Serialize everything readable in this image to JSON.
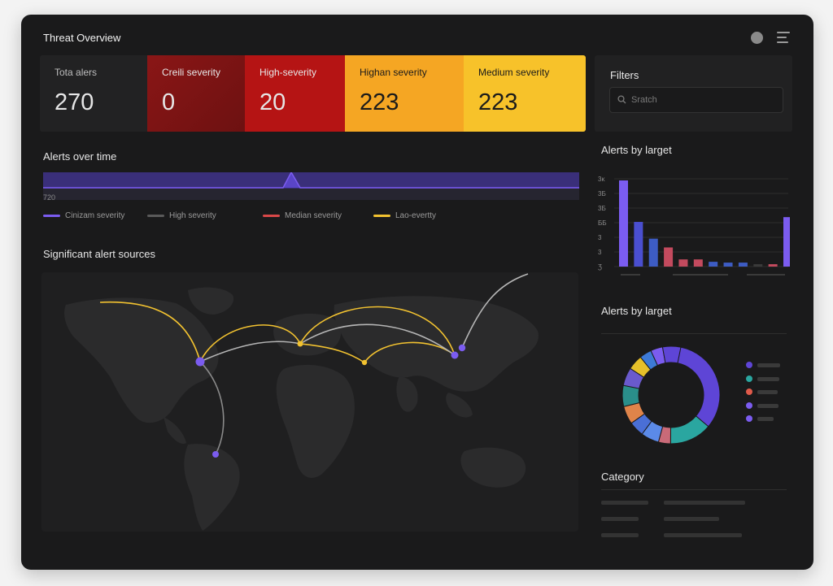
{
  "header": {
    "title": "Threat Overview",
    "icons": [
      "status-circle-icon",
      "menu-icon"
    ]
  },
  "stats": [
    {
      "key": "total",
      "label": "Tota alers",
      "value": "270"
    },
    {
      "key": "critical",
      "label": "Creili severity",
      "value": "0",
      "color": "#7d1414"
    },
    {
      "key": "high",
      "label": "High-severity",
      "value": "20",
      "color": "#b51414"
    },
    {
      "key": "highan",
      "label": "Highan severity",
      "value": "223",
      "color": "#f5a623"
    },
    {
      "key": "medium",
      "label": "Medium severity",
      "value": "223",
      "color": "#f7c22a"
    }
  ],
  "filters": {
    "title": "Filters",
    "search_placeholder": "Sratch"
  },
  "timeline": {
    "title": "Alerts over time",
    "axis_label": "720",
    "legend": [
      {
        "label": "Cinizam severity",
        "color": "#7b5cf0"
      },
      {
        "label": "High severity",
        "color": "#5a5a5a"
      },
      {
        "label": "Median severity",
        "color": "#d94848"
      },
      {
        "label": "Lao-evertty",
        "color": "#f2c230"
      }
    ]
  },
  "map": {
    "title": "Significant alert sources",
    "colors": {
      "arc_primary": "#f2c230",
      "arc_secondary": "#b5b5b5",
      "node": "#7b5cf0",
      "land": "#2b2b2c"
    }
  },
  "bar_chart": {
    "title": "Alerts by larget",
    "tick_labels": [
      "3ĸ",
      "3Ƃ",
      "3Ƃ",
      "ƂƂ",
      "3",
      "3",
      "Ʒ"
    ],
    "chart_data": {
      "type": "bar",
      "categories": [
        "",
        "",
        "",
        "",
        "",
        "",
        "",
        "",
        "",
        "",
        "",
        ""
      ],
      "values": [
        108,
        56,
        35,
        24,
        9,
        9,
        6,
        5,
        5,
        3,
        3,
        62
      ],
      "colors": [
        "#7b5cf0",
        "#4a4fd0",
        "#3d5cc4",
        "#c34a5e",
        "#c34a5e",
        "#c34a5e",
        "#3d5cc4",
        "#3d5cc4",
        "#3d5cc4",
        "#3a3a3a",
        "#c34a5e",
        "#7b5cf0"
      ]
    }
  },
  "donut_chart": {
    "title": "Alerts by larget",
    "chart_data": {
      "type": "pie",
      "values": [
        33,
        14,
        4,
        6,
        5,
        6,
        7,
        6,
        5,
        4,
        4,
        6
      ],
      "colors": [
        "#5e45d6",
        "#2aa6a0",
        "#c96a78",
        "#5b8ae8",
        "#4a6fd6",
        "#e0844a",
        "#2a8e8a",
        "#6a5acd",
        "#e6c02a",
        "#3d7ad6",
        "#7b5cf0",
        "#5e45d6"
      ]
    },
    "legend_colors": [
      "#5e45d6",
      "#2aa6a0",
      "#e05a4a",
      "#7b5cf0",
      "#7b5cf0"
    ]
  },
  "category": {
    "title": "Category"
  }
}
